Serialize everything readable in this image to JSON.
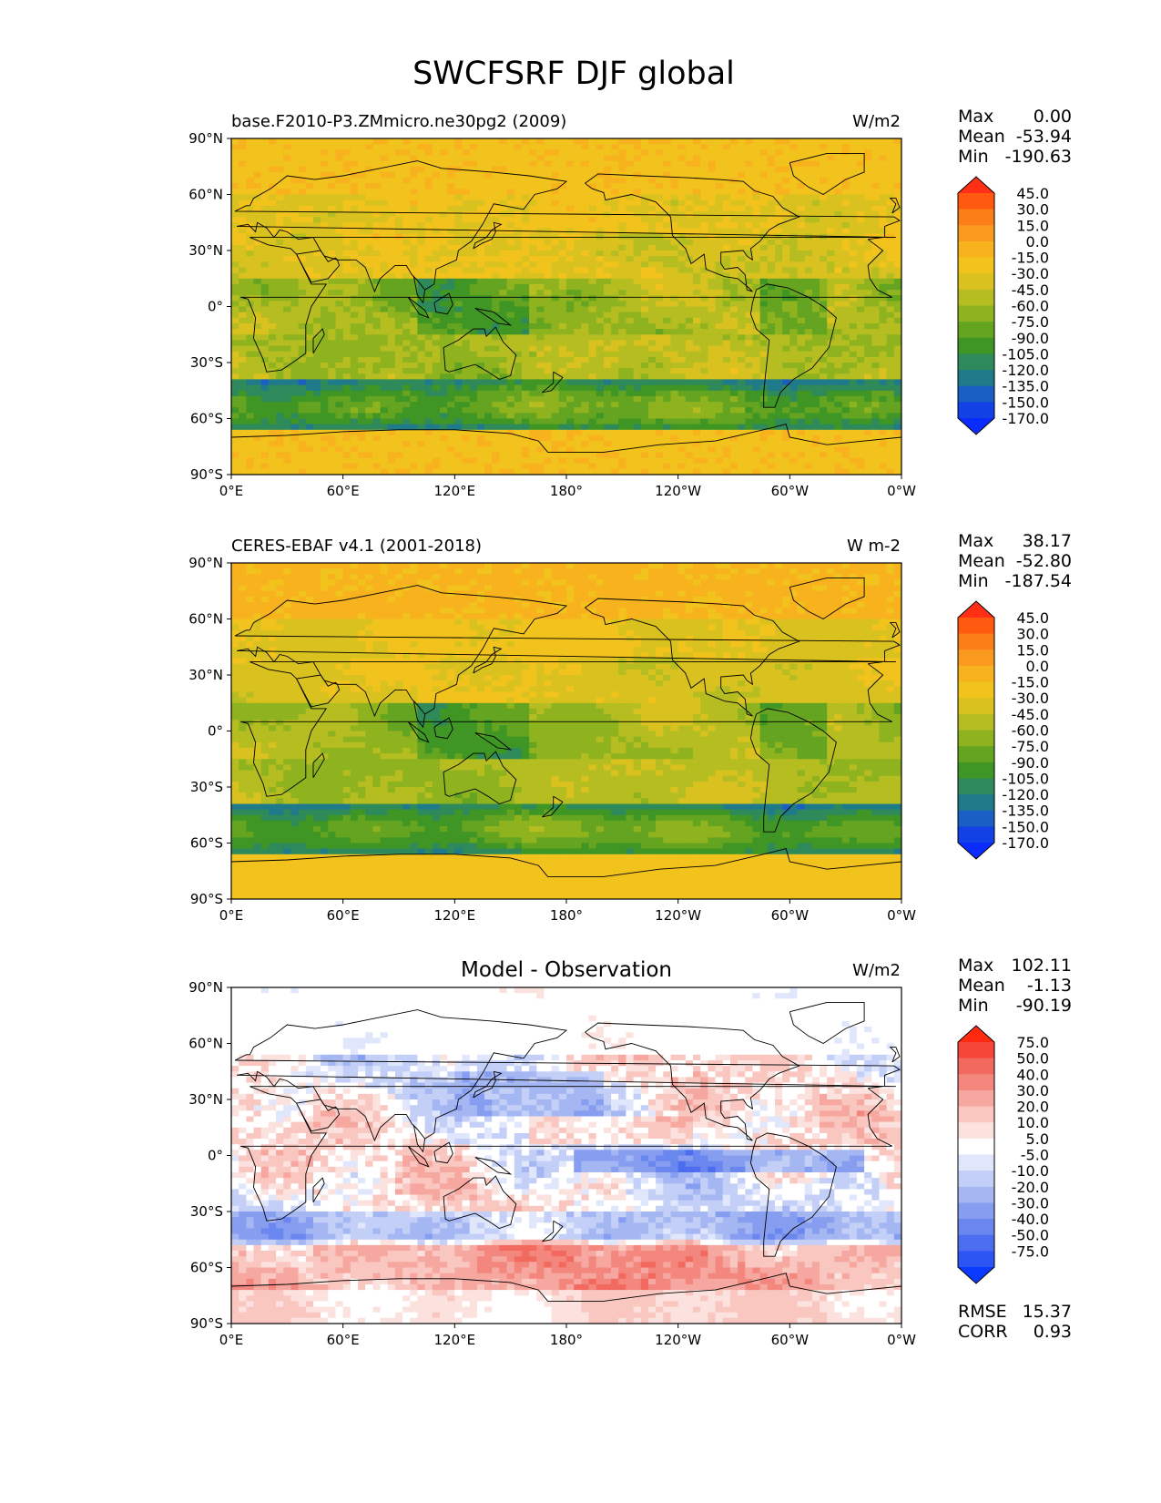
{
  "figure_title": "SWCFSRF DJF global",
  "colors": {
    "ocean_orange": "#f9a11b",
    "land_line": "#000000"
  },
  "chart_data": [
    {
      "type": "heatmap",
      "title": "base.F2010-P3.ZMmicro.ne30pg2 (2009)",
      "units": "W/m2",
      "stats": {
        "max_label": "Max",
        "max": "0.00",
        "mean_label": "Mean",
        "mean": "-53.94",
        "min_label": "Min",
        "min": "-190.63"
      },
      "x_ticks": [
        "0°E",
        "60°E",
        "120°E",
        "180°",
        "120°W",
        "60°W",
        "0°W"
      ],
      "y_ticks": [
        "90°N",
        "60°N",
        "30°N",
        "0°",
        "30°S",
        "60°S",
        "90°S"
      ],
      "xlim": [
        0,
        360
      ],
      "ylim": [
        -90,
        90
      ],
      "colorbar": {
        "labels": [
          "45.0",
          "30.0",
          "15.0",
          "0.0",
          "-15.0",
          "-30.0",
          "-45.0",
          "-60.0",
          "-75.0",
          "-90.0",
          "-105.0",
          "-120.0",
          "-135.0",
          "-150.0",
          "-170.0"
        ],
        "colors": [
          "#ff3015",
          "#ff5a10",
          "#fb7e18",
          "#f99a1f",
          "#f7b21e",
          "#f2c21d",
          "#d9c21f",
          "#b5bd20",
          "#8fb31f",
          "#64a420",
          "#3f9624",
          "#2e8a5a",
          "#1f7a8a",
          "#1a5fc4",
          "#1241e6",
          "#0a2cff"
        ]
      },
      "field": "model"
    },
    {
      "type": "heatmap",
      "title": "CERES-EBAF v4.1 (2001-2018)",
      "units": "W m-2",
      "stats": {
        "max_label": "Max",
        "max": "38.17",
        "mean_label": "Mean",
        "mean": "-52.80",
        "min_label": "Min",
        "min": "-187.54"
      },
      "x_ticks": [
        "0°E",
        "60°E",
        "120°E",
        "180°",
        "120°W",
        "60°W",
        "0°W"
      ],
      "y_ticks": [
        "90°N",
        "60°N",
        "30°N",
        "0°",
        "30°S",
        "60°S",
        "90°S"
      ],
      "xlim": [
        0,
        360
      ],
      "ylim": [
        -90,
        90
      ],
      "colorbar": {
        "labels": [
          "45.0",
          "30.0",
          "15.0",
          "0.0",
          "-15.0",
          "-30.0",
          "-45.0",
          "-60.0",
          "-75.0",
          "-90.0",
          "-105.0",
          "-120.0",
          "-135.0",
          "-150.0",
          "-170.0"
        ],
        "colors": [
          "#ff3015",
          "#ff5a10",
          "#fb7e18",
          "#f99a1f",
          "#f7b21e",
          "#f2c21d",
          "#d9c21f",
          "#b5bd20",
          "#8fb31f",
          "#64a420",
          "#3f9624",
          "#2e8a5a",
          "#1f7a8a",
          "#1a5fc4",
          "#1241e6",
          "#0a2cff"
        ]
      },
      "field": "obs"
    },
    {
      "type": "heatmap",
      "title": "Model - Observation",
      "units": "W/m2",
      "stats": {
        "max_label": "Max",
        "max": "102.11",
        "mean_label": "Mean",
        "mean": "-1.13",
        "min_label": "Min",
        "min": "-90.19",
        "rmse_label": "RMSE",
        "rmse": "15.37",
        "corr_label": "CORR",
        "corr": "0.93"
      },
      "x_ticks": [
        "0°E",
        "60°E",
        "120°E",
        "180°",
        "120°W",
        "60°W",
        "0°W"
      ],
      "y_ticks": [
        "90°N",
        "60°N",
        "30°N",
        "0°",
        "30°S",
        "60°S",
        "90°S"
      ],
      "xlim": [
        0,
        360
      ],
      "ylim": [
        -90,
        90
      ],
      "colorbar": {
        "labels": [
          "75.0",
          "50.0",
          "40.0",
          "30.0",
          "20.0",
          "10.0",
          "5.0",
          "-5.0",
          "-10.0",
          "-20.0",
          "-30.0",
          "-40.0",
          "-50.0",
          "-75.0"
        ],
        "colors": [
          "#ff2a10",
          "#f6463a",
          "#f26a5f",
          "#f3877e",
          "#f6a79f",
          "#f9c6c0",
          "#fce2de",
          "#ffffff",
          "#e0e6fb",
          "#c3cff7",
          "#a5b7f2",
          "#879ef0",
          "#6a86ef",
          "#4c6df0",
          "#2c55f3",
          "#0a3aff"
        ]
      },
      "field": "diff"
    }
  ]
}
